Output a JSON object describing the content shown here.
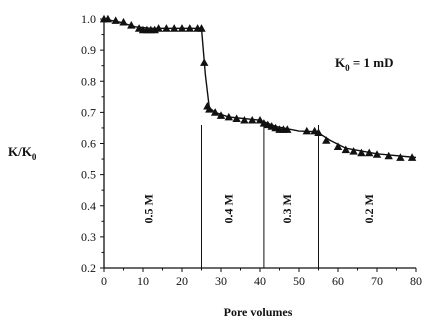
{
  "chart_data": {
    "type": "scatter",
    "xlabel": "Pore volumes",
    "ylabel": {
      "main": "K/K",
      "sub": "0"
    },
    "annotation": {
      "main": "K",
      "sub": "0",
      "rest": " = 1 mD"
    },
    "xlim": [
      0,
      80
    ],
    "ylim": [
      0.2,
      1.0
    ],
    "xticks": [
      0,
      10,
      20,
      30,
      40,
      50,
      60,
      70,
      80
    ],
    "yticks": [
      0.2,
      0.3,
      0.4,
      0.5,
      0.6,
      0.7,
      0.8,
      0.9,
      1.0
    ],
    "grid": false,
    "marker": "triangle",
    "series": [
      {
        "points": [
          [
            0,
            1.0
          ],
          [
            1,
            1.0
          ],
          [
            3,
            0.995
          ],
          [
            5,
            0.99
          ],
          [
            7,
            0.98
          ],
          [
            9,
            0.97
          ],
          [
            10,
            0.965
          ],
          [
            11,
            0.965
          ],
          [
            12,
            0.965
          ],
          [
            13,
            0.965
          ],
          [
            14,
            0.97
          ],
          [
            16,
            0.97
          ],
          [
            18,
            0.97
          ],
          [
            20,
            0.97
          ],
          [
            22,
            0.97
          ],
          [
            24,
            0.97
          ],
          [
            25,
            0.97
          ],
          [
            25.7,
            0.86
          ],
          [
            26.5,
            0.72
          ],
          [
            27,
            0.71
          ],
          [
            28.5,
            0.7
          ],
          [
            30,
            0.69
          ],
          [
            32,
            0.685
          ],
          [
            34,
            0.68
          ],
          [
            36,
            0.675
          ],
          [
            38,
            0.675
          ],
          [
            40,
            0.675
          ],
          [
            41,
            0.665
          ],
          [
            42,
            0.66
          ],
          [
            43,
            0.655
          ],
          [
            44,
            0.65
          ],
          [
            45,
            0.645
          ],
          [
            46,
            0.645
          ],
          [
            47,
            0.645
          ],
          [
            52,
            0.64
          ],
          [
            54,
            0.64
          ],
          [
            55,
            0.635
          ],
          [
            57,
            0.61
          ],
          [
            60,
            0.59
          ],
          [
            62,
            0.58
          ],
          [
            64,
            0.575
          ],
          [
            66,
            0.57
          ],
          [
            68,
            0.57
          ],
          [
            70,
            0.565
          ],
          [
            73,
            0.56
          ],
          [
            76,
            0.555
          ],
          [
            79,
            0.555
          ]
        ],
        "curve": [
          [
            0,
            1.0
          ],
          [
            4,
            0.99
          ],
          [
            8,
            0.975
          ],
          [
            12,
            0.97
          ],
          [
            25,
            0.97
          ],
          [
            26,
            0.82
          ],
          [
            27,
            0.715
          ],
          [
            28.5,
            0.7
          ],
          [
            32,
            0.685
          ],
          [
            40,
            0.675
          ],
          [
            44,
            0.655
          ],
          [
            50,
            0.64
          ],
          [
            54.5,
            0.638
          ],
          [
            58,
            0.61
          ],
          [
            62,
            0.585
          ],
          [
            70,
            0.567
          ],
          [
            80,
            0.555
          ]
        ]
      }
    ],
    "dividers": [
      25,
      41,
      55
    ],
    "regions": [
      {
        "label": "0.5 M",
        "x": 12.5,
        "y": 0.39
      },
      {
        "label": "0.4 M",
        "x": 33,
        "y": 0.39
      },
      {
        "label": "0.3 M",
        "x": 48,
        "y": 0.39
      },
      {
        "label": "0.2 M",
        "x": 69,
        "y": 0.39
      }
    ]
  }
}
